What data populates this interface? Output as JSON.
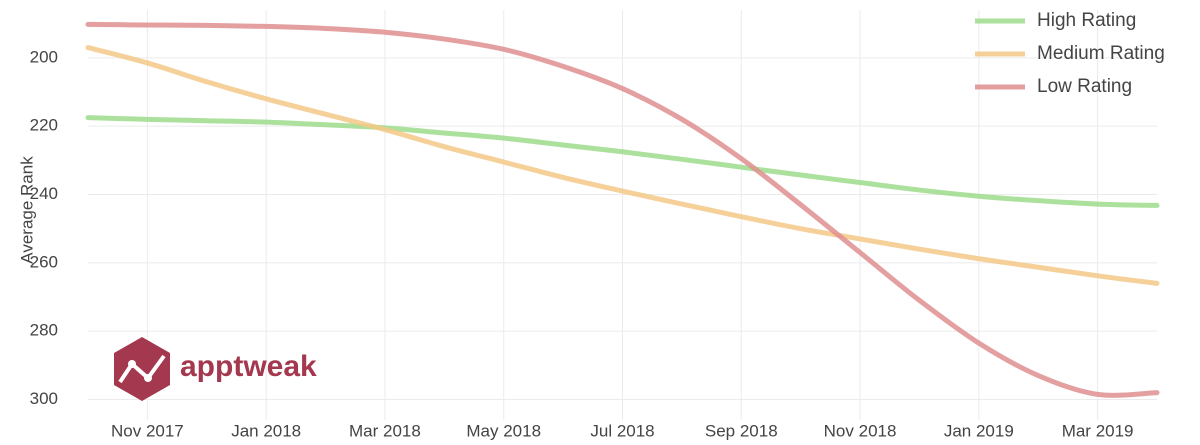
{
  "chart_data": {
    "type": "line",
    "y_label": "Average Rank",
    "watermark": "apptweak",
    "x": [
      "2017-10",
      "2017-11",
      "2017-12",
      "2018-01",
      "2018-02",
      "2018-03",
      "2018-04",
      "2018-05",
      "2018-06",
      "2018-07",
      "2018-08",
      "2018-09",
      "2018-10",
      "2018-11",
      "2018-12",
      "2019-01",
      "2019-02",
      "2019-03",
      "2019-04"
    ],
    "xlim": [
      "2017-10",
      "2019-04"
    ],
    "xticks": [
      {
        "value": "2017-11",
        "label": "Nov 2017"
      },
      {
        "value": "2018-01",
        "label": "Jan 2018"
      },
      {
        "value": "2018-03",
        "label": "Mar 2018"
      },
      {
        "value": "2018-05",
        "label": "May 2018"
      },
      {
        "value": "2018-07",
        "label": "Jul 2018"
      },
      {
        "value": "2018-09",
        "label": "Sep 2018"
      },
      {
        "value": "2018-11",
        "label": "Nov 2018"
      },
      {
        "value": "2019-01",
        "label": "Jan 2019"
      },
      {
        "value": "2019-03",
        "label": "Mar 2019"
      }
    ],
    "ylim": [
      306,
      186
    ],
    "yticks": [
      200,
      220,
      240,
      260,
      280,
      300
    ],
    "grid": true,
    "legend": "top-right",
    "series": [
      {
        "name": "High Rating",
        "color": "#9ddc8c",
        "values": [
          217.5,
          218,
          218.4,
          218.8,
          219.6,
          220.5,
          222,
          223.5,
          225.5,
          227.5,
          229.7,
          232,
          234.3,
          236.5,
          238.7,
          240.5,
          241.8,
          242.8,
          243.2
        ]
      },
      {
        "name": "Medium Rating",
        "color": "#f3c887",
        "values": [
          197,
          201.5,
          207,
          212,
          216.5,
          221,
          226,
          230.5,
          235,
          239,
          242.8,
          246.5,
          250,
          253,
          256,
          258.8,
          261.3,
          263.8,
          266
        ]
      },
      {
        "name": "Low Rating",
        "color": "#df8f8f",
        "values": [
          190.2,
          190.4,
          190.5,
          190.8,
          191.4,
          192.5,
          194.5,
          197.5,
          202.5,
          209,
          218,
          229.5,
          243,
          257,
          271,
          283.5,
          293,
          298.5,
          298
        ]
      }
    ]
  }
}
